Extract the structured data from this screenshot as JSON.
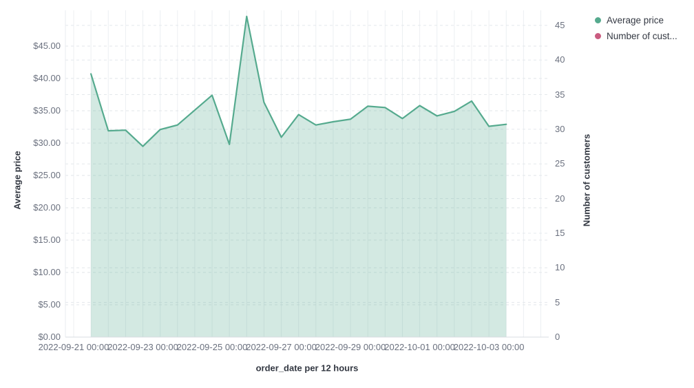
{
  "legend": {
    "items": [
      {
        "label": "Average price",
        "color": "#55aa8e"
      },
      {
        "label": "Number of cust...",
        "color": "#ca5c80"
      }
    ]
  },
  "axes": {
    "left": {
      "title": "Average price",
      "ticks": [
        "$0.00",
        "$5.00",
        "$10.00",
        "$15.00",
        "$20.00",
        "$25.00",
        "$30.00",
        "$35.00",
        "$40.00",
        "$45.00"
      ]
    },
    "right": {
      "title": "Number of customers",
      "ticks": [
        "0",
        "5",
        "10",
        "15",
        "20",
        "25",
        "30",
        "35",
        "40",
        "45"
      ]
    },
    "x": {
      "title": "order_date per 12 hours",
      "ticks": [
        "2022-09-21 00:00",
        "2022-09-23 00:00",
        "2022-09-25 00:00",
        "2022-09-27 00:00",
        "2022-09-29 00:00",
        "2022-10-01 00:00",
        "2022-10-03 00:00"
      ]
    }
  },
  "chart_data": {
    "type": "area",
    "title": "",
    "xlabel": "order_date per 12 hours",
    "ylabel_left": "Average price",
    "ylabel_right": "Number of customers",
    "ylim_left": [
      0,
      50.5
    ],
    "ylim_right": [
      0,
      47.2
    ],
    "grid": true,
    "legend_position": "top-right",
    "x": [
      "2022-09-21 12:00",
      "2022-09-22 00:00",
      "2022-09-22 12:00",
      "2022-09-23 00:00",
      "2022-09-23 12:00",
      "2022-09-24 00:00",
      "2022-09-24 12:00",
      "2022-09-25 00:00",
      "2022-09-25 12:00",
      "2022-09-26 00:00",
      "2022-09-26 12:00",
      "2022-09-27 00:00",
      "2022-09-27 12:00",
      "2022-09-28 00:00",
      "2022-09-28 12:00",
      "2022-09-29 00:00",
      "2022-09-29 12:00",
      "2022-09-30 00:00",
      "2022-09-30 12:00",
      "2022-10-01 00:00",
      "2022-10-01 12:00",
      "2022-10-02 00:00",
      "2022-10-02 12:00",
      "2022-10-03 00:00",
      "2022-10-03 12:00"
    ],
    "series": [
      {
        "name": "Average price",
        "axis": "left",
        "color": "#55aa8e",
        "fill": "rgba(85,170,142,0.26)",
        "values": [
          40.7,
          31.9,
          32.0,
          29.5,
          32.1,
          32.8,
          35.1,
          37.4,
          29.8,
          49.6,
          36.3,
          30.9,
          34.4,
          32.8,
          33.3,
          33.7,
          35.7,
          35.5,
          33.8,
          35.8,
          34.2,
          34.9,
          36.5,
          32.6,
          32.9
        ]
      },
      {
        "name": "Number of customers",
        "legend_label": "Number of cust...",
        "axis": "right",
        "color": "#ca5c80",
        "values": []
      }
    ]
  }
}
